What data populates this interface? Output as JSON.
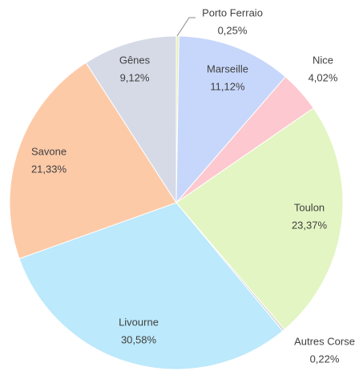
{
  "chart_data": {
    "type": "pie",
    "categories": [
      "Porto Ferraio",
      "Marseille",
      "Nice",
      "Toulon",
      "Autres Corse",
      "Livourne",
      "Savone",
      "Gênes"
    ],
    "values": [
      0.25,
      11.12,
      4.02,
      23.37,
      0.22,
      30.58,
      21.33,
      9.12
    ],
    "value_labels": [
      "0,25%",
      "11,12%",
      "4,02%",
      "23,37%",
      "0,22%",
      "30,58%",
      "21,33%",
      "9,12%"
    ],
    "colors": [
      "#e9f0b0",
      "#c7d7fb",
      "#fdc8cf",
      "#e3f5c2",
      "#d6d6d6",
      "#bce9fb",
      "#fdcaa8",
      "#d5dae6"
    ]
  }
}
